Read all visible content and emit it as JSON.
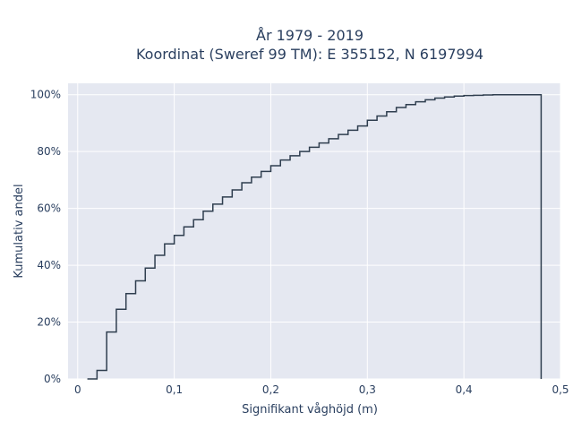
{
  "chart_data": {
    "type": "line",
    "line_shape": "step",
    "title_line1": "År 1979 - 2019",
    "title_line2": "Koordinat (Sweref 99 TM): E 355152, N 6197994",
    "xlabel": "Signifikant våghöjd (m)",
    "ylabel": "Kumulativ andel",
    "xlim": [
      -0.01,
      0.5
    ],
    "ylim": [
      0,
      1.04
    ],
    "x_ticks": [
      0,
      0.1,
      0.2,
      0.3,
      0.4,
      0.5
    ],
    "x_tick_labels": [
      "0",
      "0,1",
      "0,2",
      "0,3",
      "0,4",
      "0,5"
    ],
    "y_ticks": [
      0,
      0.2,
      0.4,
      0.6,
      0.8,
      1.0
    ],
    "y_tick_labels": [
      "0%",
      "20%",
      "40%",
      "60%",
      "80%",
      "100%"
    ],
    "grid": true,
    "colors": {
      "plot_bg": "#e5e8f1",
      "grid": "#ffffff",
      "line": "#2f3e4f"
    },
    "series": [
      {
        "x": [
          0.01,
          0.02,
          0.03,
          0.04,
          0.05,
          0.06,
          0.07,
          0.08,
          0.09,
          0.1,
          0.11,
          0.12,
          0.13,
          0.14,
          0.15,
          0.16,
          0.17,
          0.18,
          0.19,
          0.2,
          0.21,
          0.22,
          0.23,
          0.24,
          0.25,
          0.26,
          0.27,
          0.28,
          0.29,
          0.3,
          0.31,
          0.32,
          0.33,
          0.34,
          0.35,
          0.36,
          0.37,
          0.38,
          0.39,
          0.4,
          0.41,
          0.42,
          0.43,
          0.44,
          0.45,
          0.46,
          0.47,
          0.48
        ],
        "y": [
          0.0,
          0.03,
          0.165,
          0.245,
          0.3,
          0.345,
          0.39,
          0.435,
          0.475,
          0.505,
          0.535,
          0.56,
          0.59,
          0.615,
          0.64,
          0.665,
          0.69,
          0.71,
          0.73,
          0.75,
          0.77,
          0.785,
          0.8,
          0.815,
          0.83,
          0.845,
          0.86,
          0.875,
          0.89,
          0.91,
          0.925,
          0.94,
          0.955,
          0.965,
          0.975,
          0.982,
          0.988,
          0.992,
          0.995,
          0.997,
          0.998,
          0.999,
          1.0,
          1.0,
          1.0,
          1.0,
          1.0,
          0.0
        ]
      }
    ]
  }
}
